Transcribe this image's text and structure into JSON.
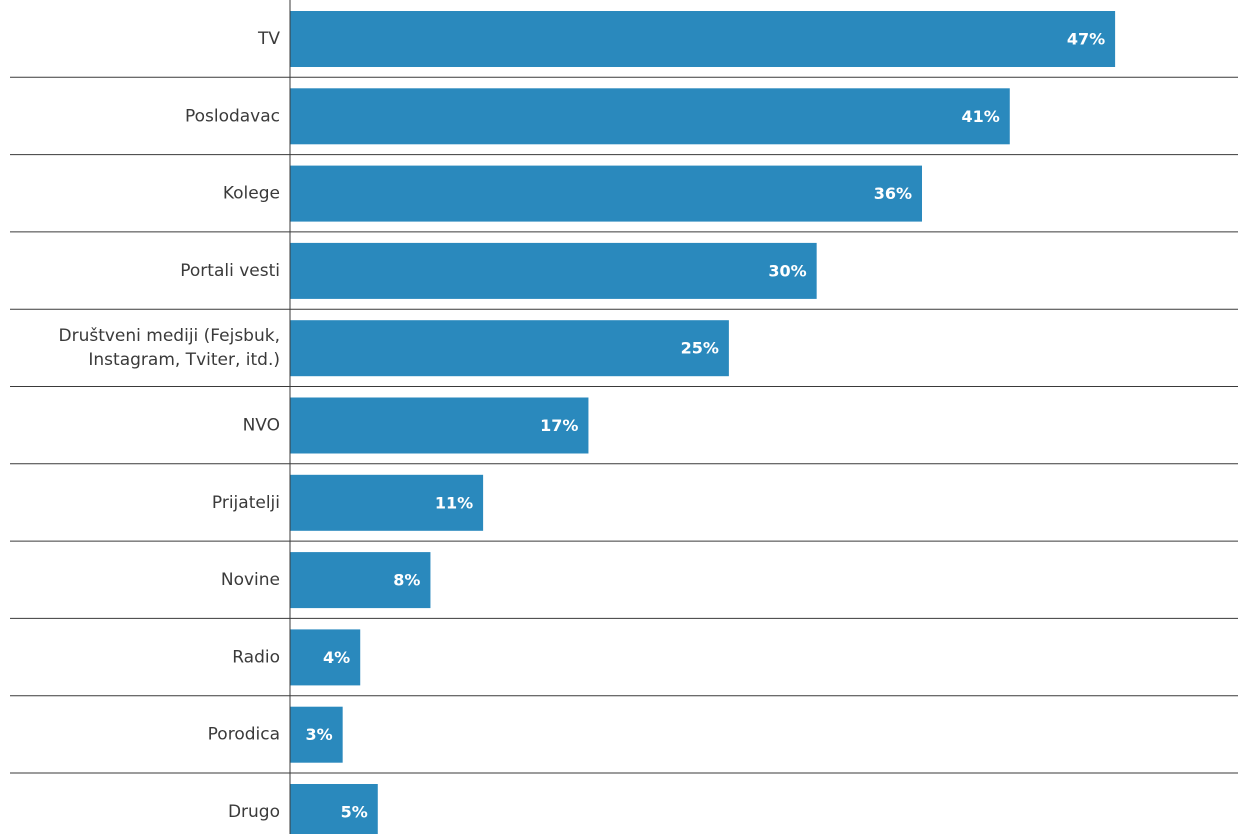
{
  "colors": {
    "bar": "#2a89bd",
    "value_label": "#ffffff",
    "category_label": "#3a3a3a",
    "separator": "#3a3a3a",
    "background": "#ffffff"
  },
  "chart_data": {
    "type": "bar",
    "orientation": "horizontal",
    "categories": [
      [
        "TV"
      ],
      [
        "Poslodavac"
      ],
      [
        "Kolege"
      ],
      [
        "Portali vesti"
      ],
      [
        "Društveni mediji (Fejsbuk,",
        "Instagram, Tviter, itd.)"
      ],
      [
        "NVO"
      ],
      [
        "Prijatelji"
      ],
      [
        "Novine"
      ],
      [
        "Radio"
      ],
      [
        "Porodica"
      ],
      [
        "Drugo"
      ]
    ],
    "values": [
      47,
      41,
      36,
      30,
      25,
      17,
      11,
      8,
      4,
      3,
      5
    ],
    "value_labels": [
      "47%",
      "41%",
      "36%",
      "30%",
      "25%",
      "17%",
      "11%",
      "8%",
      "4%",
      "3%",
      "5%"
    ],
    "unit": "%",
    "xlim": [
      0,
      54
    ],
    "grid": false,
    "legend": "none"
  }
}
